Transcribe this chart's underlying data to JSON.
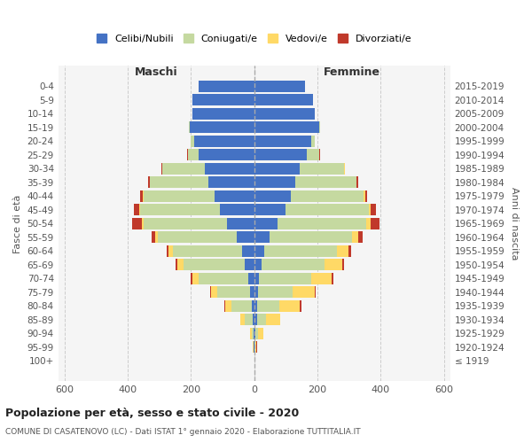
{
  "age_groups": [
    "100+",
    "95-99",
    "90-94",
    "85-89",
    "80-84",
    "75-79",
    "70-74",
    "65-69",
    "60-64",
    "55-59",
    "50-54",
    "45-49",
    "40-44",
    "35-39",
    "30-34",
    "25-29",
    "20-24",
    "15-19",
    "10-14",
    "5-9",
    "0-4"
  ],
  "birth_years": [
    "≤ 1919",
    "1920-1924",
    "1925-1929",
    "1930-1934",
    "1935-1939",
    "1940-1944",
    "1945-1949",
    "1950-1954",
    "1955-1959",
    "1960-1964",
    "1965-1969",
    "1970-1974",
    "1975-1979",
    "1980-1984",
    "1985-1989",
    "1990-1994",
    "1995-1999",
    "2000-2004",
    "2005-2009",
    "2010-2014",
    "2015-2019"
  ],
  "male": {
    "celibi": [
      0,
      1,
      2,
      5,
      8,
      12,
      20,
      30,
      38,
      55,
      85,
      110,
      125,
      145,
      155,
      175,
      190,
      205,
      195,
      195,
      175
    ],
    "coniugati": [
      0,
      2,
      6,
      25,
      65,
      105,
      155,
      195,
      220,
      250,
      265,
      250,
      225,
      185,
      135,
      35,
      10,
      2,
      1,
      0,
      0
    ],
    "vedovi": [
      0,
      1,
      5,
      15,
      20,
      20,
      22,
      18,
      12,
      8,
      5,
      3,
      2,
      1,
      1,
      1,
      0,
      0,
      0,
      0,
      0
    ],
    "divorziati": [
      0,
      0,
      0,
      0,
      2,
      2,
      4,
      6,
      8,
      12,
      30,
      18,
      8,
      4,
      2,
      1,
      0,
      0,
      0,
      0,
      0
    ]
  },
  "female": {
    "nubili": [
      0,
      2,
      4,
      8,
      10,
      12,
      15,
      22,
      32,
      48,
      75,
      100,
      115,
      130,
      145,
      165,
      180,
      205,
      190,
      185,
      160
    ],
    "coniugate": [
      0,
      2,
      8,
      30,
      70,
      110,
      165,
      200,
      230,
      262,
      280,
      262,
      232,
      192,
      140,
      40,
      12,
      2,
      1,
      0,
      0
    ],
    "vedove": [
      0,
      3,
      18,
      45,
      65,
      68,
      65,
      55,
      35,
      20,
      12,
      6,
      3,
      2,
      1,
      1,
      0,
      0,
      0,
      0,
      0
    ],
    "divorziate": [
      0,
      1,
      0,
      0,
      4,
      5,
      5,
      8,
      10,
      12,
      30,
      18,
      8,
      4,
      2,
      1,
      0,
      0,
      0,
      0,
      0
    ]
  },
  "colors": {
    "celibi": "#4472C4",
    "coniugati": "#C5D9A0",
    "vedovi": "#FFD966",
    "divorziati": "#C0392B"
  },
  "legend_labels": [
    "Celibi/Nubili",
    "Coniugati/e",
    "Vedovi/e",
    "Divorziati/e"
  ],
  "title": "Popolazione per età, sesso e stato civile - 2020",
  "subtitle": "COMUNE DI CASATENOVO (LC) - Dati ISTAT 1° gennaio 2020 - Elaborazione TUTTITALIA.IT",
  "xlabel_left": "Maschi",
  "xlabel_right": "Femmine",
  "ylabel_left": "Fasce di età",
  "ylabel_right": "Anni di nascita",
  "xlim": 620,
  "bg_color": "#f5f5f5"
}
